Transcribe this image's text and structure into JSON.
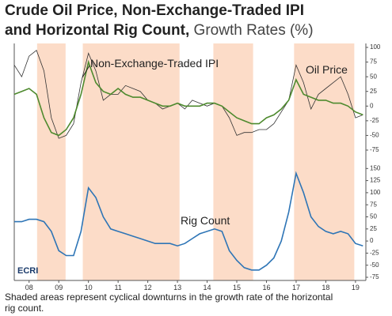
{
  "title": [
    "Crude Oil Price, Non-Exchange-Traded IPI",
    "and Horizontal Rig Count,"
  ],
  "subtitle": "Growth Rates (%)",
  "logo": "ECRI",
  "note": "Shaded areas represent cyclical downturns in the growth rate of the horizontal rig count.",
  "chart_data": [
    {
      "type": "line",
      "x": [
        2007.5,
        2007.75,
        2008,
        2008.25,
        2008.5,
        2008.75,
        2009,
        2009.25,
        2009.5,
        2009.75,
        2010,
        2010.25,
        2010.5,
        2010.75,
        2011,
        2011.25,
        2011.5,
        2011.75,
        2012,
        2012.25,
        2012.5,
        2012.75,
        2013,
        2013.25,
        2013.5,
        2013.75,
        2014,
        2014.25,
        2014.5,
        2014.75,
        2015,
        2015.25,
        2015.5,
        2015.75,
        2016,
        2016.25,
        2016.5,
        2016.75,
        2017,
        2017.25,
        2017.5,
        2017.75,
        2018,
        2018.25,
        2018.5,
        2018.75,
        2019,
        2019.25
      ],
      "xlim": [
        2007.5,
        2019.35
      ],
      "ylim": [
        -75,
        100
      ],
      "yticks": [
        -75,
        -50,
        -25,
        0,
        25,
        50,
        75,
        100
      ],
      "series": [
        {
          "name": "Oil Price",
          "color": "#333333",
          "values": [
            70,
            50,
            85,
            95,
            60,
            -20,
            -55,
            -50,
            -30,
            40,
            90,
            60,
            10,
            20,
            20,
            35,
            30,
            25,
            10,
            5,
            -5,
            0,
            5,
            -5,
            10,
            5,
            0,
            5,
            0,
            -20,
            -50,
            -45,
            -45,
            -40,
            -40,
            -30,
            -10,
            10,
            70,
            40,
            -5,
            20,
            30,
            40,
            50,
            20,
            -20,
            -15
          ]
        },
        {
          "name": "Non-Exchange-Traded IPI",
          "color": "#4e8a2e",
          "values": [
            20,
            25,
            30,
            20,
            -20,
            -45,
            -50,
            -40,
            -20,
            20,
            75,
            40,
            25,
            20,
            30,
            20,
            15,
            15,
            10,
            5,
            0,
            0,
            5,
            0,
            0,
            0,
            5,
            5,
            0,
            -10,
            -20,
            -25,
            -30,
            -30,
            -20,
            -15,
            -5,
            10,
            45,
            20,
            15,
            10,
            10,
            5,
            5,
            0,
            -10,
            -15
          ]
        }
      ]
    },
    {
      "type": "line",
      "x": [
        2007.5,
        2007.75,
        2008,
        2008.25,
        2008.5,
        2008.75,
        2009,
        2009.25,
        2009.5,
        2009.75,
        2010,
        2010.25,
        2010.5,
        2010.75,
        2011,
        2011.25,
        2011.5,
        2011.75,
        2012,
        2012.25,
        2012.5,
        2012.75,
        2013,
        2013.25,
        2013.5,
        2013.75,
        2014,
        2014.25,
        2014.5,
        2014.75,
        2015,
        2015.25,
        2015.5,
        2015.75,
        2016,
        2016.25,
        2016.5,
        2016.75,
        2017,
        2017.25,
        2017.5,
        2017.75,
        2018,
        2018.25,
        2018.5,
        2018.75,
        2019,
        2019.25
      ],
      "xlim": [
        2007.5,
        2019.35
      ],
      "xticks": [
        {
          "value": 2008,
          "label": "08"
        },
        {
          "value": 2009,
          "label": "09"
        },
        {
          "value": 2010,
          "label": "10"
        },
        {
          "value": 2011,
          "label": "11"
        },
        {
          "value": 2012,
          "label": "12"
        },
        {
          "value": 2013,
          "label": "13"
        },
        {
          "value": 2014,
          "label": "14"
        },
        {
          "value": 2015,
          "label": "15"
        },
        {
          "value": 2016,
          "label": "16"
        },
        {
          "value": 2017,
          "label": "17"
        },
        {
          "value": 2018,
          "label": "18"
        },
        {
          "value": 2019,
          "label": "19"
        }
      ],
      "ylim": [
        -75,
        175
      ],
      "yticks": [
        -75,
        -50,
        -25,
        0,
        25,
        50,
        75,
        100,
        125,
        150
      ],
      "shaded": [
        [
          2008.27,
          2009.23
        ],
        [
          2009.81,
          2013.07
        ],
        [
          2014.21,
          2015.55
        ],
        [
          2016.93,
          2018.96
        ]
      ],
      "series": [
        {
          "name": "Rig Count",
          "color": "#2e75b6",
          "values": [
            40,
            40,
            45,
            45,
            40,
            20,
            -20,
            -30,
            -30,
            20,
            110,
            90,
            50,
            25,
            20,
            15,
            10,
            5,
            0,
            -5,
            -5,
            -5,
            -10,
            -5,
            5,
            15,
            20,
            25,
            20,
            -20,
            -40,
            -55,
            -60,
            -60,
            -50,
            -35,
            0,
            60,
            140,
            100,
            50,
            30,
            20,
            15,
            20,
            15,
            -5,
            -10
          ]
        }
      ]
    }
  ]
}
